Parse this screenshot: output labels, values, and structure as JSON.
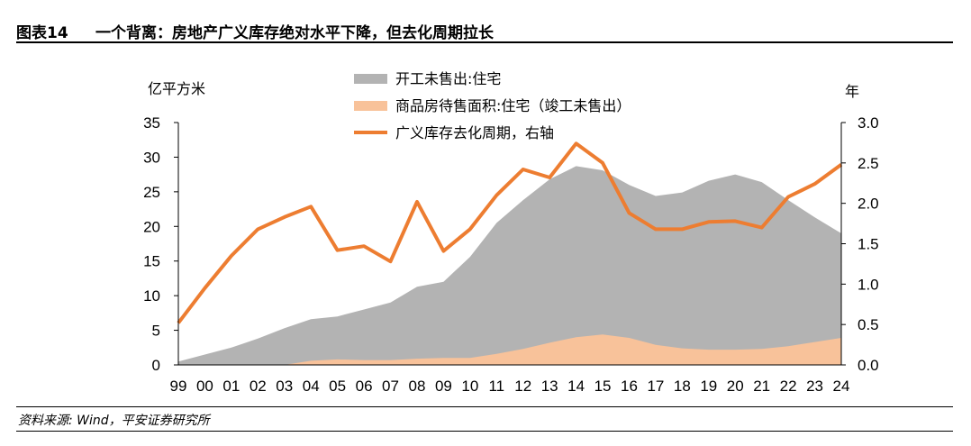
{
  "header": {
    "figure_no": "图表14",
    "title": "一个背离：房地产广义库存绝对水平下降，但去化周期拉长"
  },
  "footer": {
    "source": "资料来源: Wind，平安证券研究所"
  },
  "colors": {
    "unsold_completed": "#b3b3b3",
    "for_sale": "#f8c29a",
    "cycle": "#ed7d31"
  },
  "chart_data": {
    "type": "area",
    "left_unit": "亿平方米",
    "right_unit": "年",
    "categories": [
      "99",
      "00",
      "01",
      "02",
      "03",
      "04",
      "05",
      "06",
      "07",
      "08",
      "09",
      "10",
      "11",
      "12",
      "13",
      "14",
      "15",
      "16",
      "17",
      "18",
      "19",
      "20",
      "21",
      "22",
      "23",
      "24"
    ],
    "ylim_left": [
      0,
      35
    ],
    "left_ticks": [
      0,
      5,
      10,
      15,
      20,
      25,
      30,
      35
    ],
    "ylim_right": [
      0,
      3.0
    ],
    "right_ticks": [
      "0.0",
      "0.5",
      "1.0",
      "1.5",
      "2.0",
      "2.5",
      "3.0"
    ],
    "series": [
      {
        "name": "开工未售出:住宅",
        "type": "area",
        "axis": "left",
        "values": [
          0.5,
          1.5,
          2.5,
          3.8,
          5.3,
          6.6,
          7.0,
          8.0,
          9.0,
          11.3,
          12.0,
          15.6,
          20.5,
          23.8,
          26.8,
          28.7,
          28.1,
          26.0,
          24.4,
          24.9,
          26.6,
          27.5,
          26.4,
          23.8,
          21.3,
          19.0
        ]
      },
      {
        "name": "商品房待售面积:住宅（竣工未售出）",
        "type": "area",
        "axis": "left",
        "values": [
          0.0,
          0.0,
          0.0,
          0.0,
          0.0,
          0.6,
          0.8,
          0.7,
          0.7,
          0.9,
          1.0,
          1.0,
          1.6,
          2.3,
          3.2,
          4.0,
          4.4,
          3.9,
          2.9,
          2.4,
          2.2,
          2.2,
          2.3,
          2.7,
          3.3,
          3.9
        ]
      },
      {
        "name": "广义库存去化周期，右轴",
        "type": "line",
        "axis": "right",
        "values": [
          0.52,
          0.95,
          1.35,
          1.68,
          1.83,
          1.96,
          1.42,
          1.47,
          1.28,
          2.02,
          1.41,
          1.68,
          2.1,
          2.42,
          2.32,
          2.74,
          2.5,
          1.88,
          1.68,
          1.68,
          1.77,
          1.78,
          1.7,
          2.08,
          2.24,
          2.48
        ]
      }
    ]
  }
}
